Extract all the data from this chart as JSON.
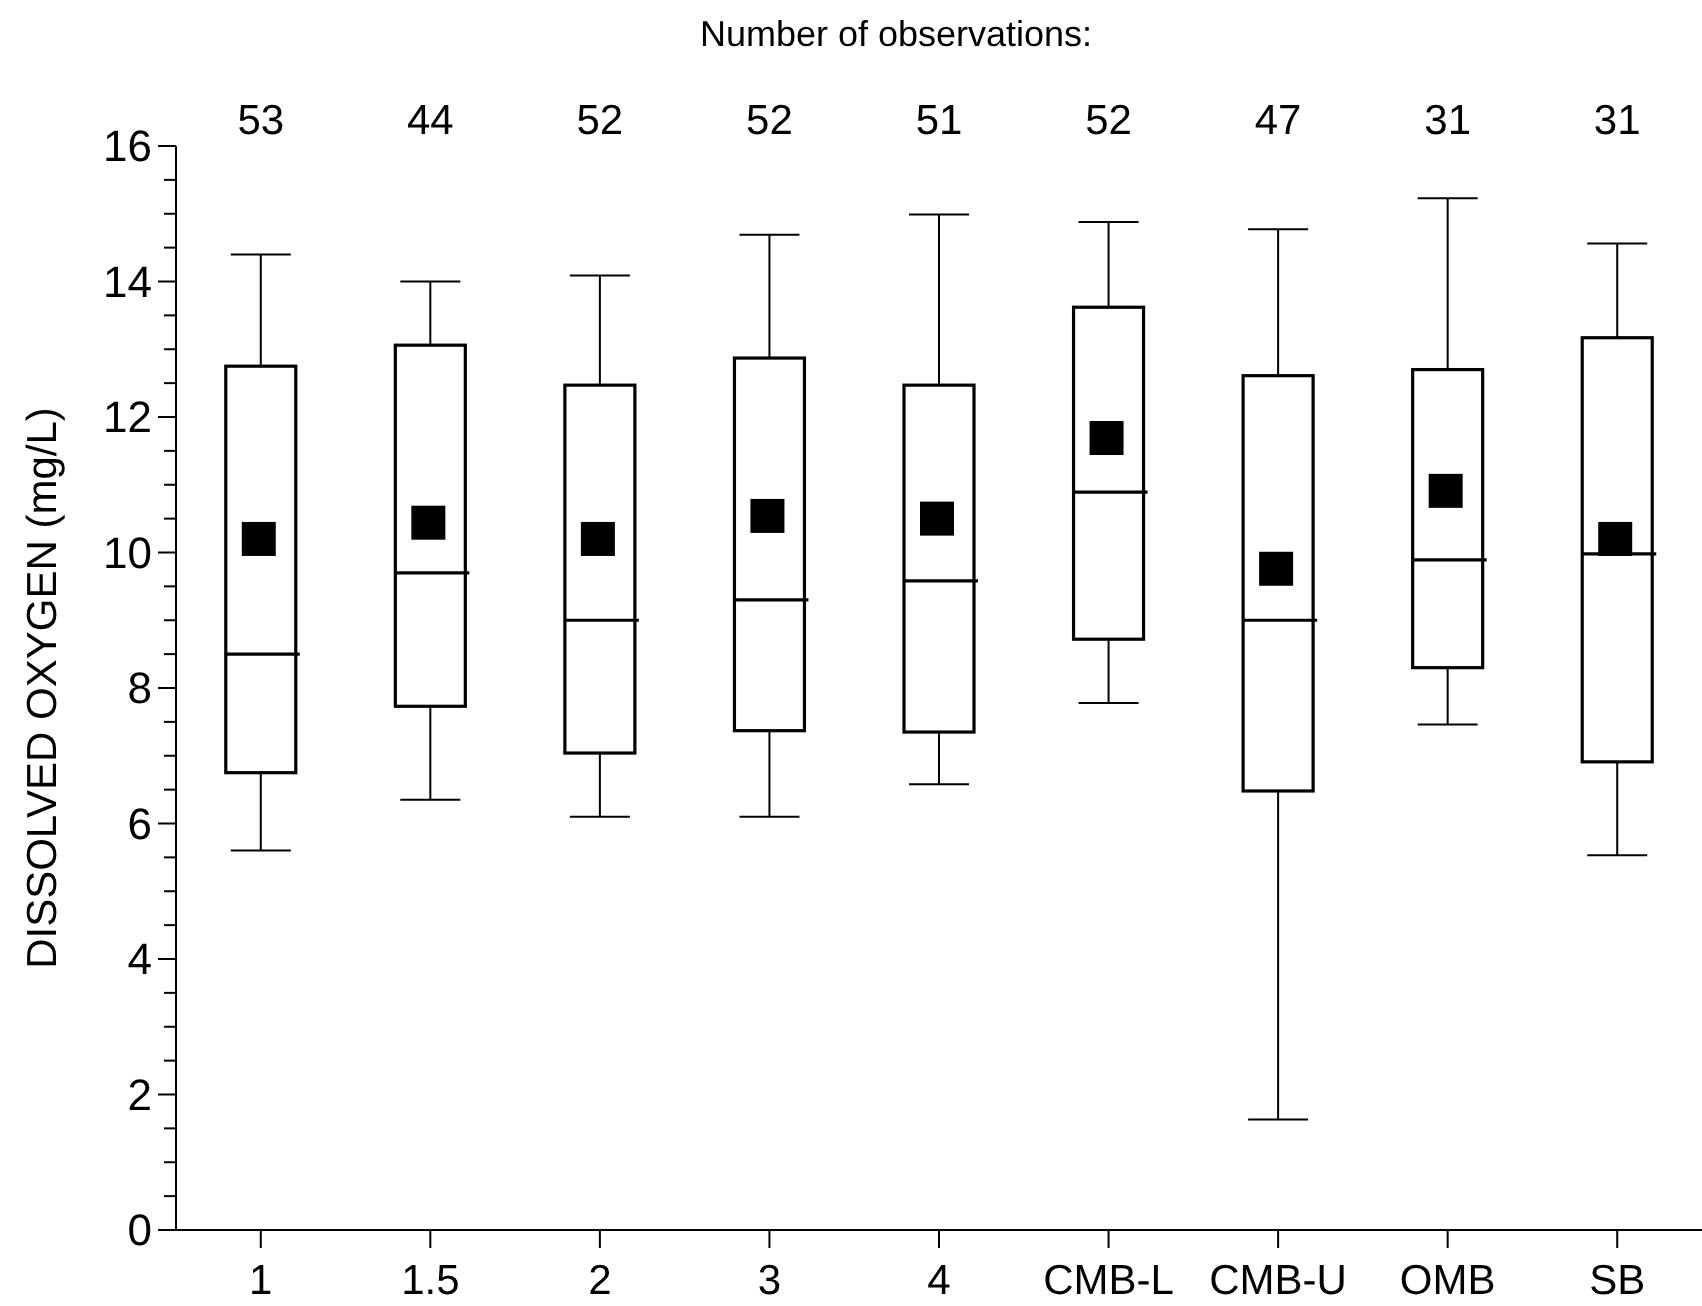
{
  "chart_data": {
    "type": "box",
    "title": "Number of observations:",
    "ylabel": "DISSOLVED OXYGEN (mg/L)",
    "categories": [
      "1",
      "1.5",
      "2",
      "3",
      "4",
      "CMB-L",
      "CMB-U",
      "OMB",
      "SB"
    ],
    "boxes": [
      {
        "low": 5.6,
        "q1": 6.75,
        "median": 8.5,
        "q3": 12.75,
        "high": 14.4,
        "mean": 10.2
      },
      {
        "low": 6.35,
        "q1": 7.73,
        "median": 9.7,
        "q3": 13.06,
        "high": 14.0,
        "mean": 10.44
      },
      {
        "low": 6.1,
        "q1": 7.04,
        "median": 9.0,
        "q3": 12.47,
        "high": 14.09,
        "mean": 10.2
      },
      {
        "low": 6.1,
        "q1": 7.37,
        "median": 9.3,
        "q3": 12.87,
        "high": 14.69,
        "mean": 10.54
      },
      {
        "low": 6.58,
        "q1": 7.35,
        "median": 9.58,
        "q3": 12.47,
        "high": 14.99,
        "mean": 10.5
      },
      {
        "low": 7.78,
        "q1": 8.72,
        "median": 10.89,
        "q3": 13.62,
        "high": 14.88,
        "mean": 11.69
      },
      {
        "low": 1.63,
        "q1": 6.48,
        "median": 9.0,
        "q3": 12.61,
        "high": 14.77,
        "mean": 9.76
      },
      {
        "low": 7.46,
        "q1": 8.3,
        "median": 9.89,
        "q3": 12.7,
        "high": 15.23,
        "mean": 10.91
      },
      {
        "low": 5.53,
        "q1": 6.91,
        "median": 9.98,
        "q3": 13.17,
        "high": 14.56,
        "mean": 10.2
      }
    ],
    "annotations": [
      "53",
      "44",
      "52",
      "52",
      "51",
      "52",
      "47",
      "31",
      "31"
    ],
    "ylim": [
      0,
      16
    ],
    "yticks": [
      0,
      {
        "value": 0.5,
        "label": null
      },
      {
        "value": 1,
        "label": null
      },
      {
        "value": 1.5,
        "label": null
      },
      2,
      {
        "value": 2.5,
        "label": null
      },
      {
        "value": 3,
        "label": null
      },
      {
        "value": 3.5,
        "label": null
      },
      4,
      {
        "value": 4.5,
        "label": null
      },
      {
        "value": 5,
        "label": null
      },
      {
        "value": 5.5,
        "label": null
      },
      6,
      {
        "value": 6.5,
        "label": null
      },
      {
        "value": 7,
        "label": null
      },
      {
        "value": 7.5,
        "label": null
      },
      8,
      {
        "value": 8.5,
        "label": null
      },
      {
        "value": 9,
        "label": null
      },
      {
        "value": 9.5,
        "label": null
      },
      10,
      {
        "value": 10.5,
        "label": null
      },
      {
        "value": 11,
        "label": null
      },
      {
        "value": 11.5,
        "label": null
      },
      12,
      {
        "value": 12.5,
        "label": null
      },
      {
        "value": 13,
        "label": null
      },
      {
        "value": 13.5,
        "label": null
      },
      14,
      {
        "value": 14.5,
        "label": null
      },
      {
        "value": 15,
        "label": null
      },
      {
        "value": 15.5,
        "label": null
      },
      16
    ],
    "marker": "square",
    "grid": false
  }
}
